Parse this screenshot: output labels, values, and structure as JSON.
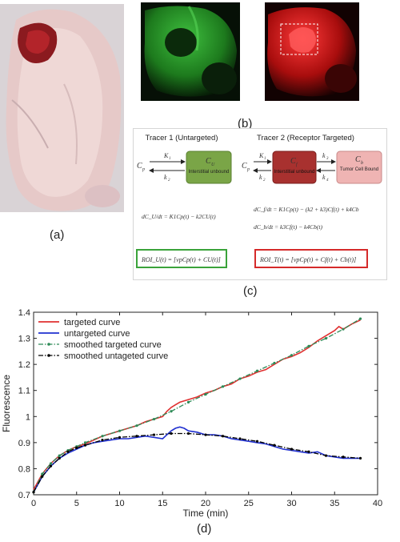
{
  "panels": {
    "a_label": "(a)",
    "b_label": "(b)",
    "c_label": "(c)",
    "d_label": "(d)"
  },
  "model": {
    "tracer1_title": "Tracer 1 (Untargeted)",
    "tracer2_title": "Tracer 2 (Receptor Targeted)",
    "tracer1_box_symbol": "C",
    "tracer1_box_sub": "U",
    "tracer1_box_text": "Interstitial unbound",
    "tracer2_free_symbol": "C",
    "tracer2_free_sub": "f",
    "tracer2_free_text": "Interstitial unbound",
    "tracer2_bound_symbol": "C",
    "tracer2_bound_sub": "b",
    "tracer2_bound_text": "Tumor Cell Bound",
    "input_symbol": "C",
    "input_sub": "p",
    "k1": "K",
    "k1_sub": "1",
    "k2": "k",
    "k2_sub": "2",
    "k3": "k",
    "k3_sub": "3",
    "k4": "k",
    "k4_sub": "4",
    "eq1": "dC_U/dt = K1Cp(t) − k2CU(t)",
    "eq2a": "dC_f/dt = K1Cp(t) − (k2 + k3)Cf(t) + k4Cb",
    "eq2b": "dC_b/dt = k3Cf(t) − k4Cb(t)",
    "roi1": "ROI_U(t) = [vpCp(t) + CU(t)]",
    "roi2": "ROI_T(t) = [vpCp(t) + Cf(t) + Cb(t)]",
    "colors": {
      "green_box": "#7aa547",
      "darkred_box": "#a8312f",
      "pink_box": "#efb4b3",
      "roi1_border": "#3aa33a",
      "roi2_border": "#d52a2a"
    }
  },
  "chart_data": {
    "type": "line",
    "xlabel": "Time (min)",
    "ylabel": "Fluorescence",
    "xlim": [
      0,
      40
    ],
    "ylim": [
      0.7,
      1.4
    ],
    "xticks": [
      "0",
      "5",
      "10",
      "15",
      "20",
      "25",
      "30",
      "35",
      "40"
    ],
    "yticks": [
      "0.7",
      "0.8",
      "0.9",
      "1",
      "1.1",
      "1.2",
      "1.3",
      "1.4"
    ],
    "legend_position": "top-left",
    "series": [
      {
        "name": "targeted curve",
        "color": "#e03030",
        "style": "solid",
        "x": [
          0,
          0.5,
          1,
          2,
          3,
          4,
          5,
          6,
          7,
          8,
          9,
          10,
          11,
          12,
          13,
          14,
          15,
          15.5,
          16,
          16.5,
          17,
          18,
          19,
          20,
          21,
          22,
          23,
          24,
          25,
          26,
          27,
          28,
          29,
          30,
          31,
          32,
          33,
          34,
          35,
          35.5,
          36,
          37,
          38
        ],
        "y": [
          0.72,
          0.75,
          0.78,
          0.82,
          0.85,
          0.87,
          0.885,
          0.895,
          0.91,
          0.925,
          0.935,
          0.945,
          0.955,
          0.965,
          0.98,
          0.99,
          1.0,
          1.02,
          1.035,
          1.045,
          1.055,
          1.065,
          1.075,
          1.09,
          1.1,
          1.115,
          1.125,
          1.145,
          1.155,
          1.17,
          1.18,
          1.2,
          1.22,
          1.23,
          1.245,
          1.265,
          1.29,
          1.31,
          1.33,
          1.345,
          1.335,
          1.355,
          1.37
        ]
      },
      {
        "name": "untargeted curve",
        "color": "#2030d0",
        "style": "solid",
        "x": [
          0,
          0.5,
          1,
          2,
          3,
          4,
          5,
          6,
          7,
          8,
          9,
          10,
          11,
          12,
          13,
          14,
          15,
          15.5,
          16,
          16.5,
          17,
          17.5,
          18,
          19,
          20,
          21,
          22,
          23,
          24,
          25,
          26,
          27,
          28,
          29,
          30,
          31,
          32,
          33,
          34,
          35,
          36,
          37,
          38
        ],
        "y": [
          0.71,
          0.74,
          0.77,
          0.81,
          0.84,
          0.86,
          0.875,
          0.89,
          0.9,
          0.905,
          0.91,
          0.915,
          0.915,
          0.92,
          0.925,
          0.92,
          0.915,
          0.93,
          0.945,
          0.955,
          0.96,
          0.955,
          0.945,
          0.94,
          0.93,
          0.93,
          0.925,
          0.915,
          0.91,
          0.905,
          0.9,
          0.895,
          0.885,
          0.875,
          0.87,
          0.865,
          0.86,
          0.865,
          0.85,
          0.845,
          0.84,
          0.84,
          0.84
        ]
      },
      {
        "name": "smoothed targeted curve",
        "color": "#2e8b57",
        "style": "dashdot",
        "x": [
          0,
          1,
          2,
          3,
          4,
          5,
          6,
          8,
          10,
          12,
          14,
          16,
          18,
          20,
          22,
          24,
          26,
          28,
          30,
          32,
          34,
          36,
          38
        ],
        "y": [
          0.71,
          0.78,
          0.82,
          0.85,
          0.87,
          0.885,
          0.9,
          0.925,
          0.945,
          0.965,
          0.99,
          1.02,
          1.055,
          1.085,
          1.115,
          1.145,
          1.175,
          1.205,
          1.235,
          1.27,
          1.3,
          1.335,
          1.375
        ]
      },
      {
        "name": "smoothed untageted curve",
        "color": "#000000",
        "style": "dashdot",
        "x": [
          0,
          1,
          2,
          3,
          4,
          5,
          6,
          8,
          10,
          12,
          14,
          16,
          18,
          20,
          22,
          24,
          26,
          28,
          30,
          32,
          34,
          36,
          38
        ],
        "y": [
          0.71,
          0.77,
          0.81,
          0.84,
          0.865,
          0.88,
          0.89,
          0.91,
          0.92,
          0.925,
          0.93,
          0.935,
          0.935,
          0.93,
          0.925,
          0.915,
          0.905,
          0.89,
          0.875,
          0.865,
          0.85,
          0.845,
          0.84
        ]
      }
    ]
  }
}
